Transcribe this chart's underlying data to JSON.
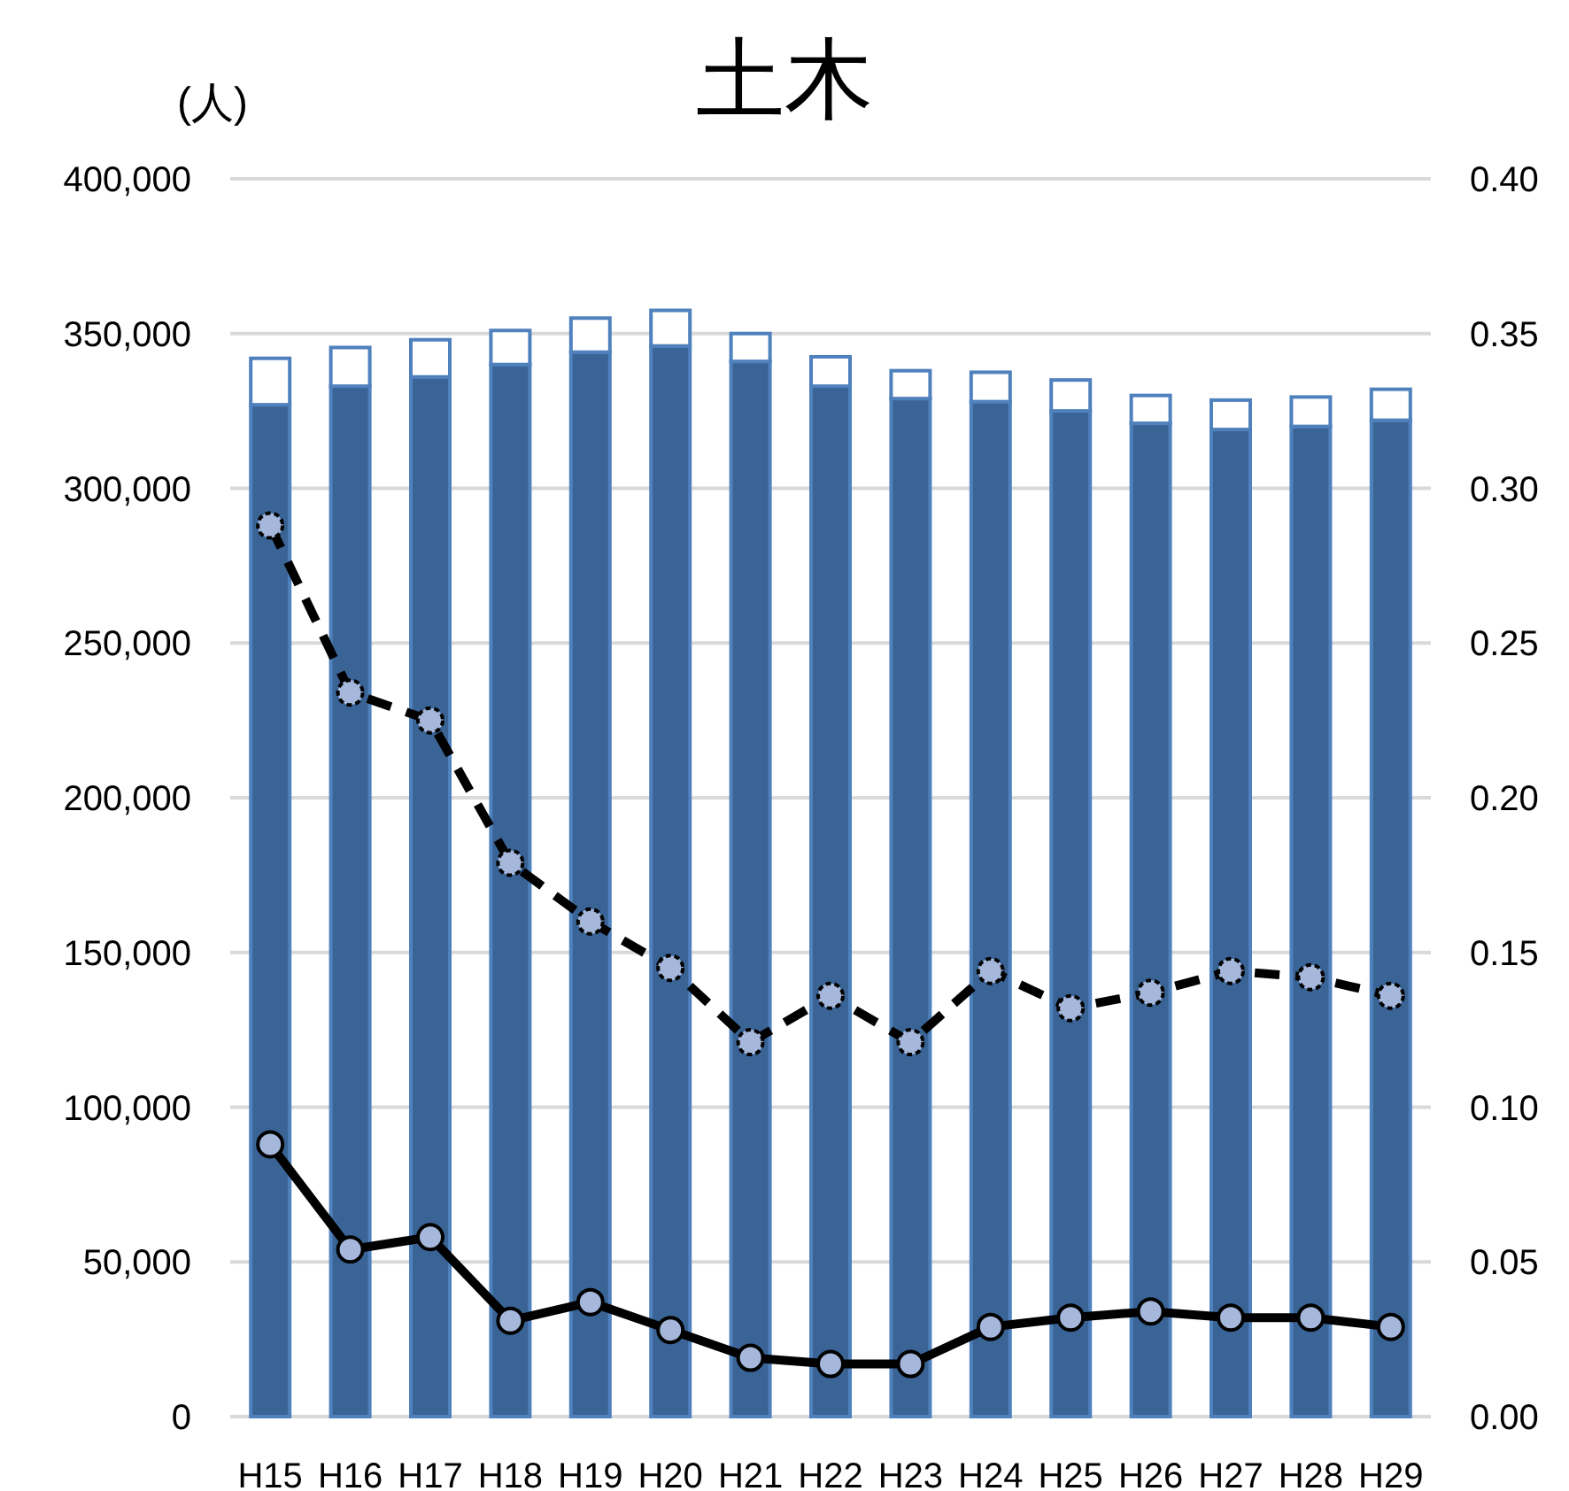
{
  "chart_data": {
    "type": "bar",
    "title": "土木",
    "ylabel": "(人)",
    "stacked": true,
    "categories": [
      "H15",
      "H16",
      "H17",
      "H18",
      "H19",
      "H20",
      "H21",
      "H22",
      "H23",
      "H24",
      "H25",
      "H26",
      "H27",
      "H28",
      "H29"
    ],
    "series": [
      {
        "type": "bar",
        "color": "#3b6496",
        "values": [
          327000,
          333000,
          336000,
          340000,
          344000,
          346000,
          341000,
          333000,
          329000,
          328000,
          325000,
          321000,
          319000,
          320000,
          322000
        ]
      },
      {
        "type": "bar",
        "color": "#ffffff",
        "values": [
          15000,
          12500,
          12000,
          11000,
          11000,
          11500,
          9000,
          9500,
          9000,
          9500,
          10000,
          9000,
          9500,
          9500,
          10000
        ]
      },
      {
        "type": "line",
        "axis": "y2",
        "color": "#000000",
        "line_style": "dashed",
        "marker": "circle",
        "values": [
          0.288,
          0.234,
          0.225,
          0.179,
          0.16,
          0.145,
          0.121,
          0.136,
          0.121,
          0.144,
          0.132,
          0.137,
          0.144,
          0.142,
          0.136
        ]
      },
      {
        "type": "line",
        "axis": "y2",
        "color": "#000000",
        "line_style": "solid",
        "marker": "circle",
        "values": [
          0.088,
          0.054,
          0.058,
          0.031,
          0.037,
          0.028,
          0.019,
          0.017,
          0.017,
          0.029,
          0.032,
          0.034,
          0.032,
          0.032,
          0.029
        ]
      }
    ],
    "ylim": [
      0,
      400000
    ],
    "yticks": [
      0,
      {
        "value": 50000,
        "label": "50,000"
      },
      {
        "value": 100000,
        "label": "100,000"
      },
      {
        "value": 150000,
        "label": "150,000"
      },
      {
        "value": 200000,
        "label": "200,000"
      },
      {
        "value": 250000,
        "label": "250,000"
      },
      {
        "value": 300000,
        "label": "300,000"
      },
      {
        "value": 350000,
        "label": "350,000"
      },
      {
        "value": 400000,
        "label": "400,000"
      }
    ],
    "y2lim": [
      0,
      0.4
    ],
    "y2ticks": [
      {
        "value": 0,
        "label": "0.00"
      },
      {
        "value": 0.05,
        "label": "0.05"
      },
      {
        "value": 0.1,
        "label": "0.10"
      },
      {
        "value": 0.15,
        "label": "0.15"
      },
      {
        "value": 0.2,
        "label": "0.20"
      },
      {
        "value": 0.25,
        "label": "0.25"
      },
      {
        "value": 0.3,
        "label": "0.30"
      },
      {
        "value": 0.35,
        "label": "0.35"
      },
      {
        "value": 0.4,
        "label": "0.40"
      }
    ],
    "grid": "y"
  }
}
